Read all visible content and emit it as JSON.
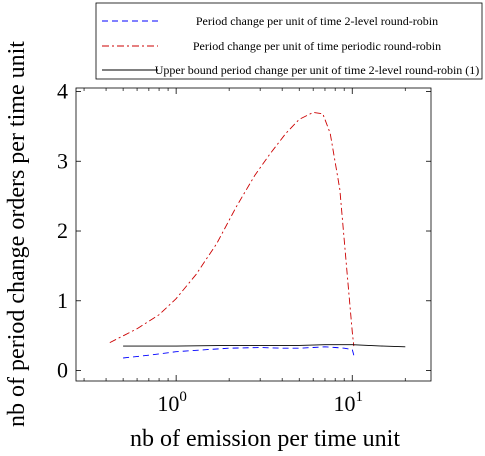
{
  "chart_data": {
    "type": "line",
    "xlabel": "nb of emission per time unit",
    "ylabel": "nb of period change orders per time unit",
    "x_scale": "log",
    "xlim": [
      0.27,
      28
    ],
    "ylim": [
      -0.15,
      4.05
    ],
    "x_ticks": [
      {
        "value": 1,
        "base": "10",
        "exp": "0"
      },
      {
        "value": 10,
        "base": "10",
        "exp": "1"
      }
    ],
    "y_ticks": [
      {
        "value": 0,
        "label": "0"
      },
      {
        "value": 1,
        "label": "1"
      },
      {
        "value": 2,
        "label": "2"
      },
      {
        "value": 3,
        "label": "3"
      },
      {
        "value": 4,
        "label": "4"
      }
    ],
    "grid": false,
    "legend_position": "top",
    "series": [
      {
        "name": "Period change per unit of time 2-level round-robin",
        "color": "#0000ff",
        "dash": "dashed",
        "x": [
          0.5,
          0.7,
          1.0,
          1.5,
          2.0,
          3.0,
          4.0,
          5.0,
          6.0,
          7.0,
          8.0,
          9.0,
          10.0,
          10.2
        ],
        "y": [
          0.18,
          0.22,
          0.27,
          0.3,
          0.32,
          0.33,
          0.32,
          0.32,
          0.33,
          0.34,
          0.33,
          0.32,
          0.3,
          0.22
        ]
      },
      {
        "name": "Period change per unit of time periodic round-robin",
        "color": "#cc0000",
        "dash": "dashdot",
        "x": [
          0.42,
          0.6,
          0.8,
          1.0,
          1.3,
          1.7,
          2.2,
          2.8,
          3.4,
          4.2,
          5.0,
          6.0,
          6.8,
          7.5,
          8.5,
          9.5,
          10.0,
          10.2
        ],
        "y": [
          0.4,
          0.6,
          0.8,
          1.03,
          1.38,
          1.82,
          2.35,
          2.8,
          3.1,
          3.4,
          3.6,
          3.7,
          3.68,
          3.4,
          2.6,
          1.2,
          0.55,
          0.35
        ]
      },
      {
        "name": "Upper bound period change per unit of time 2-level round-robin (1)",
        "color": "#000000",
        "dash": "solid",
        "x": [
          0.5,
          1.0,
          2.0,
          3.0,
          5.0,
          7.0,
          10.0,
          15.0,
          20.0
        ],
        "y": [
          0.35,
          0.35,
          0.36,
          0.36,
          0.36,
          0.37,
          0.37,
          0.35,
          0.34
        ]
      }
    ]
  }
}
